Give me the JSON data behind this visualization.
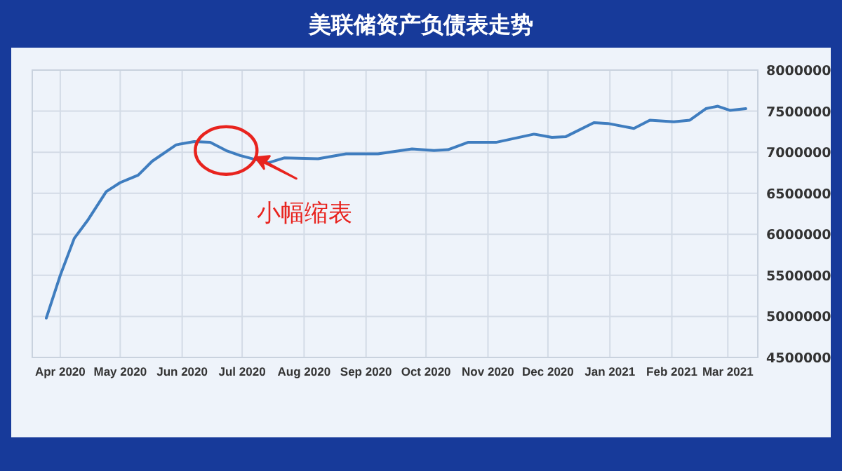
{
  "chart_data": {
    "type": "line",
    "title": "美联储资产负债表走势",
    "x": [
      "2020-03-25",
      "2020-04-01",
      "2020-04-08",
      "2020-04-15",
      "2020-04-24",
      "2020-05-01",
      "2020-05-10",
      "2020-05-17",
      "2020-05-29",
      "2020-06-07",
      "2020-06-15",
      "2020-06-23",
      "2020-06-30",
      "2020-07-14",
      "2020-07-22",
      "2020-08-08",
      "2020-08-22",
      "2020-09-07",
      "2020-09-24",
      "2020-10-05",
      "2020-10-12",
      "2020-10-22",
      "2020-11-05",
      "2020-11-24",
      "2020-12-03",
      "2020-12-10",
      "2020-12-24",
      "2020-12-31",
      "2021-01-13",
      "2021-01-21",
      "2021-02-02",
      "2021-02-10",
      "2021-02-18",
      "2021-02-24",
      "2021-03-02",
      "2021-03-10"
    ],
    "series": [
      {
        "color": "#3f7dbf",
        "values": [
          4980000,
          5500000,
          5950000,
          6180000,
          6520000,
          6630000,
          6720000,
          6890000,
          7090000,
          7130000,
          7120000,
          7020000,
          6960000,
          6870000,
          6930000,
          6920000,
          6980000,
          6980000,
          7040000,
          7020000,
          7030000,
          7120000,
          7120000,
          7220000,
          7180000,
          7190000,
          7360000,
          7350000,
          7290000,
          7390000,
          7370000,
          7390000,
          7530000,
          7560000,
          7510000,
          7530000
        ]
      }
    ],
    "xlim": [
      "2020-03-18",
      "2021-03-16"
    ],
    "xticks": [
      {
        "value": "2020-04-01",
        "label": "Apr 2020"
      },
      {
        "value": "2020-05-01",
        "label": "May 2020"
      },
      {
        "value": "2020-06-01",
        "label": "Jun 2020"
      },
      {
        "value": "2020-07-01",
        "label": "Jul 2020"
      },
      {
        "value": "2020-08-01",
        "label": "Aug 2020"
      },
      {
        "value": "2020-09-01",
        "label": "Sep 2020"
      },
      {
        "value": "2020-10-01",
        "label": "Oct 2020"
      },
      {
        "value": "2020-11-01",
        "label": "Nov 2020"
      },
      {
        "value": "2020-12-01",
        "label": "Dec 2020"
      },
      {
        "value": "2021-01-01",
        "label": "Jan 2021"
      },
      {
        "value": "2021-02-01",
        "label": "Feb 2021"
      },
      {
        "value": "2021-03-01",
        "label": "Mar 2021"
      }
    ],
    "ylim": [
      4500000,
      8000000
    ],
    "yticks": [
      4500000,
      5000000,
      5500000,
      6000000,
      6500000,
      7000000,
      7500000,
      8000000
    ],
    "grid": true,
    "marker": "none",
    "line_style": "solid",
    "annotations": [
      {
        "text": "小幅缩表",
        "x": "2020-06-23",
        "y": 7020000
      }
    ]
  }
}
